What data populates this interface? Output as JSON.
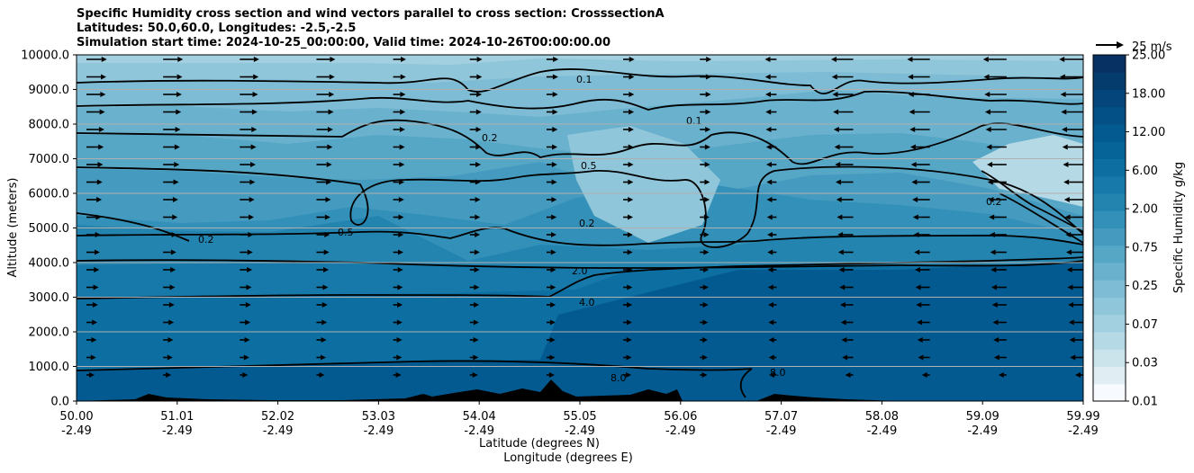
{
  "title_lines": [
    "Specific Humidity cross section and wind vectors parallel to cross section: CrosssectionA",
    "Latitudes: 50.0,60.0, Longitudes: -2.5,-2.5",
    "Simulation start time: 2024-10-25_00:00:00, Valid time: 2024-10-26T00:00:00.00"
  ],
  "chart_data": {
    "type": "heatmap",
    "xlabel_lines": [
      "Latitude (degrees N)",
      "Longitude (degrees E)"
    ],
    "ylabel": "Altitude (meters)",
    "ylim": [
      0,
      10000
    ],
    "yticks": [
      "0.0",
      "1000.0",
      "2000.0",
      "3000.0",
      "4000.0",
      "5000.0",
      "6000.0",
      "7000.0",
      "8000.0",
      "9000.0",
      "10000.0"
    ],
    "xticks": [
      {
        "lat": "50.00",
        "lon": "-2.49"
      },
      {
        "lat": "51.01",
        "lon": "-2.49"
      },
      {
        "lat": "52.02",
        "lon": "-2.49"
      },
      {
        "lat": "53.03",
        "lon": "-2.49"
      },
      {
        "lat": "54.04",
        "lon": "-2.49"
      },
      {
        "lat": "55.05",
        "lon": "-2.49"
      },
      {
        "lat": "56.06",
        "lon": "-2.49"
      },
      {
        "lat": "57.07",
        "lon": "-2.49"
      },
      {
        "lat": "58.08",
        "lon": "-2.49"
      },
      {
        "lat": "59.09",
        "lon": "-2.49"
      },
      {
        "lat": "59.99",
        "lon": "-2.49"
      }
    ],
    "horizontal_grid": true,
    "colorbar": {
      "label": "Specific Humidity g/kg",
      "ticks": [
        "0.01",
        "0.03",
        "0.07",
        "0.25",
        "0.75",
        "2.00",
        "6.00",
        "12.00",
        "18.00",
        "25.00"
      ],
      "levels": 20,
      "colors": [
        "#f7fbff",
        "#e0eef4",
        "#cbe4ec",
        "#b6d9e6",
        "#a3d0e0",
        "#90c6da",
        "#7dbcd4",
        "#69b1cd",
        "#56a6c6",
        "#449bbf",
        "#3390b8",
        "#2484b0",
        "#1779a9",
        "#0c6ea1",
        "#066499",
        "#035a90",
        "#035086",
        "#04467b",
        "#053c6e",
        "#073163",
        "#0a2657",
        "#0b1c4f",
        "#081d58"
      ]
    },
    "contour_labels": [
      "0.1",
      "0.2",
      "0.5",
      "2.0",
      "4.0",
      "8.0"
    ],
    "wind_key": {
      "label": "25 m/s"
    },
    "wind_direction": {
      "south_of_56N": "northward (right-pointing)",
      "north_of_57N": "southward (left-pointing)"
    }
  }
}
